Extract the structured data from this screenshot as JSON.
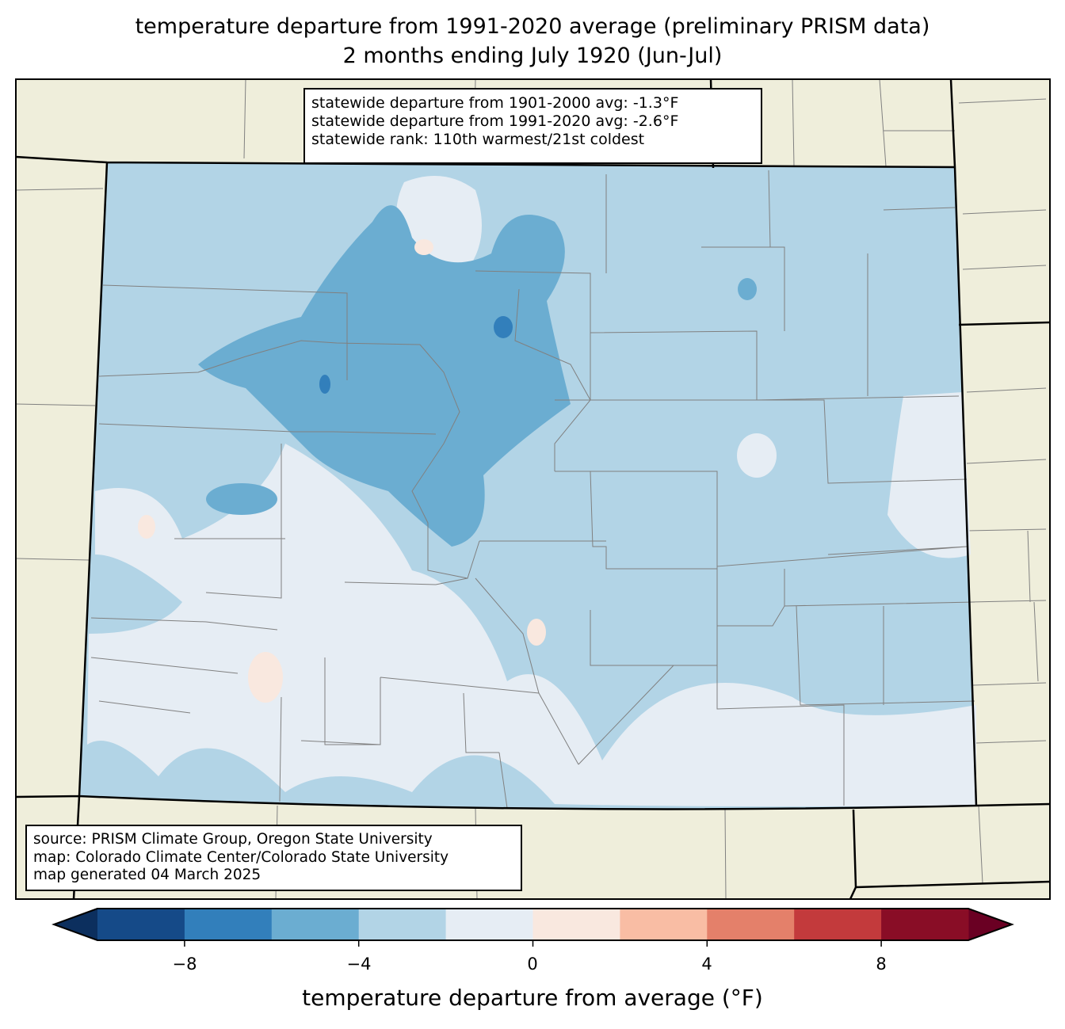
{
  "title": {
    "line1": "temperature departure from 1991-2020 average (preliminary PRISM data)",
    "line2": "2 months ending July 1920 (Jun-Jul)"
  },
  "stats": [
    "statewide departure from 1901-2000 avg: -1.3°F",
    "statewide departure from 1991-2020 avg: -2.6°F",
    "statewide rank: 110th warmest/21st coldest"
  ],
  "source": [
    "source: PRISM Climate Group, Oregon State University",
    "map: Colorado Climate Center/Colorado State University",
    "map generated 04 March 2025"
  ],
  "colorbar": {
    "label": "temperature departure from average (°F)",
    "ticks": [
      "−8",
      "−4",
      "0",
      "4",
      "8"
    ],
    "bins": [
      -10,
      -8,
      -6,
      -4,
      -2,
      0,
      2,
      4,
      6,
      8,
      10
    ],
    "colors": [
      "#154a88",
      "#327fbb",
      "#6badd1",
      "#b2d4e6",
      "#e6edf4",
      "#f9e8df",
      "#f9bda4",
      "#e4806a",
      "#c33a3c",
      "#890d26"
    ],
    "under_color": "#0c2f5e",
    "over_color": "#6a0023"
  },
  "colors": {
    "land": "#efeedb",
    "state_border": "#000000",
    "county_border": "#808080"
  }
}
